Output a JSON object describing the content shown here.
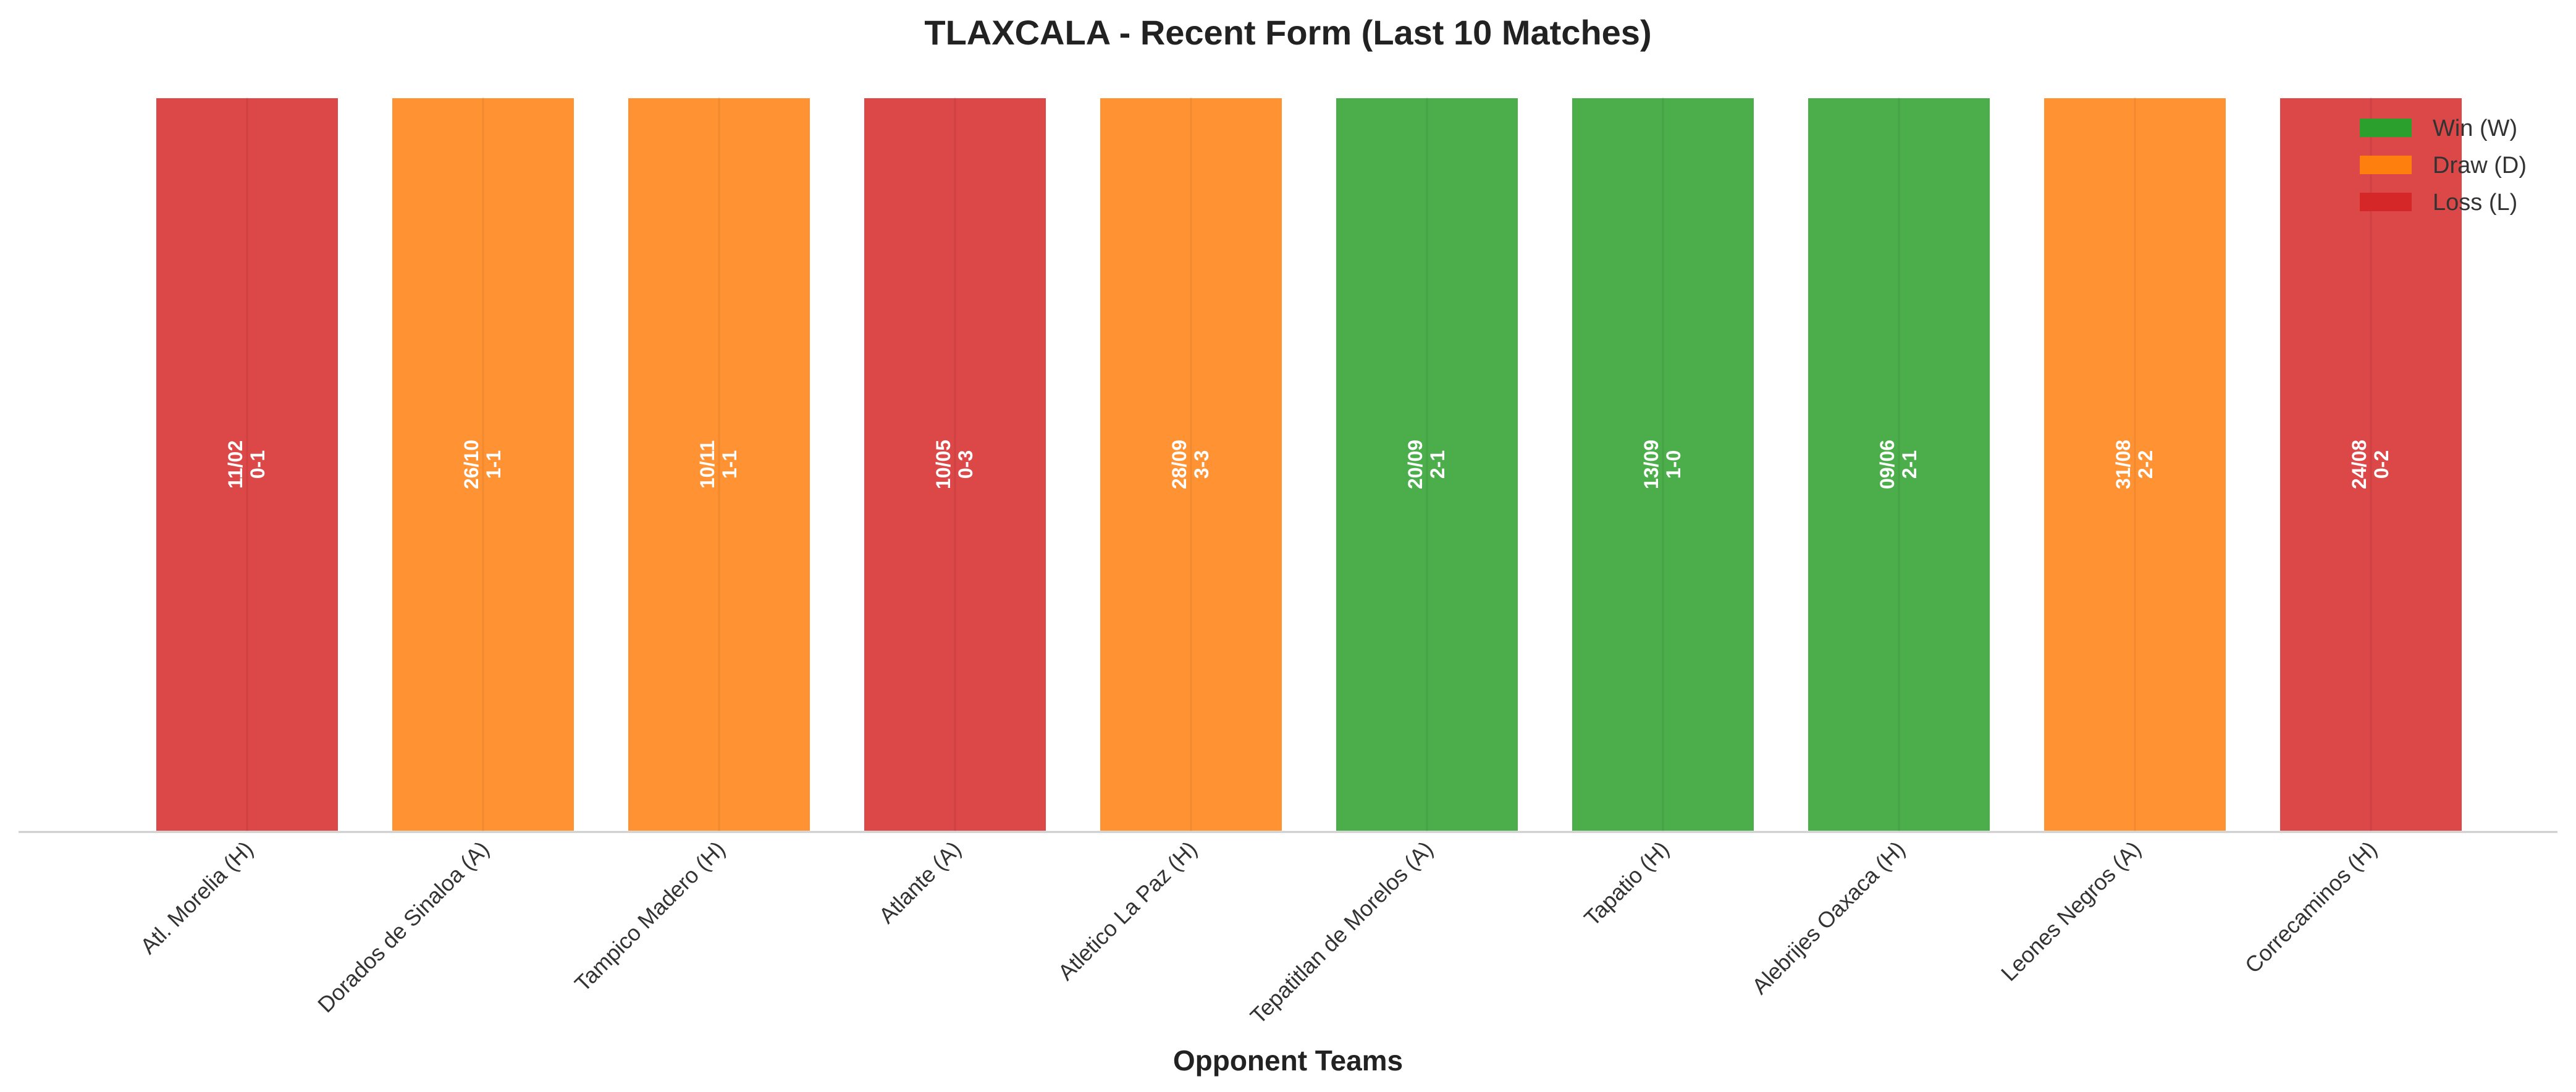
{
  "chart_data": {
    "type": "bar",
    "title": "TLAXCALA - Recent Form (Last 10 Matches)",
    "xlabel": "Opponent Teams",
    "ylabel": "",
    "ylim": [
      0,
      1
    ],
    "grid": false,
    "legend_position": "top-right",
    "categories": [
      "Atl. Morelia (H)",
      "Dorados de Sinaloa (A)",
      "Tampico Madero (H)",
      "Atlante (A)",
      "Atletico La Paz (H)",
      "Tepatitlan de Morelos (A)",
      "Tapatio (H)",
      "Alebrijes Oaxaca (H)",
      "Leones Negros (A)",
      "Correcaminos (H)"
    ],
    "values": [
      1,
      1,
      1,
      1,
      1,
      1,
      1,
      1,
      1,
      1
    ],
    "results": [
      "L",
      "D",
      "D",
      "L",
      "D",
      "W",
      "W",
      "W",
      "D",
      "L"
    ],
    "dates": [
      "11/02",
      "26/10",
      "10/11",
      "10/05",
      "28/09",
      "20/09",
      "13/09",
      "09/06",
      "31/08",
      "24/08"
    ],
    "scores": [
      "0-1",
      "1-1",
      "1-1",
      "0-3",
      "3-3",
      "2-1",
      "1-0",
      "2-1",
      "2-2",
      "0-2"
    ],
    "legend": [
      {
        "key": "W",
        "label": "Win (W)",
        "color": "#2ca02c"
      },
      {
        "key": "D",
        "label": "Draw (D)",
        "color": "#ff7f0e"
      },
      {
        "key": "L",
        "label": "Loss (L)",
        "color": "#d62728"
      }
    ]
  }
}
